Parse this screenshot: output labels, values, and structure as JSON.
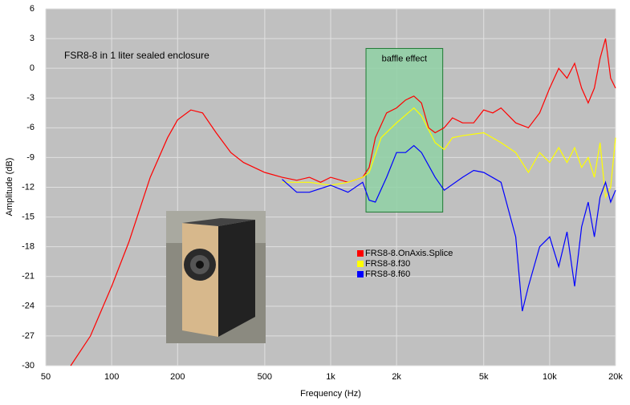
{
  "chart_data": {
    "type": "line",
    "title": "FSR8-8 in 1 liter sealed enclosure",
    "x_label": "Frequency (Hz)",
    "y_label": "Amplitude (dB)",
    "x_scale": "log",
    "grid": true,
    "legend": "center",
    "xlim": [
      50,
      20000
    ],
    "ylim": [
      -30,
      6
    ],
    "xticks": [
      50,
      100,
      200,
      500,
      {
        "value": 1000,
        "label": "1k"
      },
      {
        "value": 2000,
        "label": "2k"
      },
      {
        "value": 5000,
        "label": "5k"
      },
      {
        "value": 10000,
        "label": "10k"
      },
      {
        "value": 20000,
        "label": "20k"
      }
    ],
    "yticks": [
      6,
      3,
      0,
      -3,
      -6,
      -9,
      -12,
      -15,
      -18,
      -21,
      -24,
      -27,
      -30
    ],
    "shaded_region": {
      "label": "baffle effect",
      "xlim": [
        1450,
        3250
      ],
      "ylim": [
        -14.5,
        2
      ],
      "color": "#8fd1a4"
    },
    "series": [
      {
        "name": "FRS8-8.OnAxis.Splice",
        "color": "#ff0000",
        "x": [
          65,
          80,
          100,
          120,
          150,
          180,
          200,
          230,
          260,
          300,
          350,
          400,
          500,
          600,
          700,
          800,
          900,
          1000,
          1200,
          1400,
          1500,
          1600,
          1800,
          2000,
          2200,
          2400,
          2600,
          2800,
          3000,
          3300,
          3600,
          4000,
          4500,
          5000,
          5500,
          6000,
          7000,
          8000,
          9000,
          10000,
          11000,
          12000,
          13000,
          14000,
          15000,
          16000,
          17000,
          18000,
          19000,
          20000
        ],
        "values": [
          -30,
          -27,
          -22,
          -17.5,
          -11,
          -7,
          -5.2,
          -4.2,
          -4.5,
          -6.5,
          -8.5,
          -9.5,
          -10.5,
          -11,
          -11.3,
          -11,
          -11.5,
          -11,
          -11.5,
          -11,
          -10,
          -7,
          -4.5,
          -4,
          -3.2,
          -2.8,
          -3.5,
          -6,
          -6.5,
          -6,
          -5,
          -5.5,
          -5.5,
          -4.2,
          -4.5,
          -4,
          -5.5,
          -6,
          -4.5,
          -2,
          0,
          -1,
          0.5,
          -2,
          -3.5,
          -2,
          1,
          3,
          -1,
          -2
        ]
      },
      {
        "name": "FRS8-8.f30",
        "color": "#ffff00",
        "x": [
          600,
          800,
          1000,
          1200,
          1400,
          1500,
          1700,
          2000,
          2400,
          2600,
          3000,
          3300,
          3600,
          4000,
          5000,
          6000,
          7000,
          8000,
          9000,
          10000,
          11000,
          12000,
          13000,
          14000,
          15000,
          16000,
          17000,
          18000,
          19000,
          20000
        ],
        "values": [
          -11.5,
          -11.5,
          -11.8,
          -11.5,
          -11,
          -10.5,
          -7,
          -5.5,
          -4,
          -4.8,
          -7.5,
          -8.2,
          -7,
          -6.8,
          -6.5,
          -7.5,
          -8.5,
          -10.5,
          -8.5,
          -9.5,
          -8,
          -9.5,
          -8,
          -10,
          -9,
          -11,
          -7.5,
          -13,
          -12,
          -7
        ]
      },
      {
        "name": "FRS8-8.f60",
        "color": "#0000ff",
        "x": [
          600,
          700,
          800,
          1000,
          1200,
          1400,
          1500,
          1600,
          1800,
          2000,
          2200,
          2400,
          2600,
          3000,
          3300,
          4000,
          4500,
          5000,
          6000,
          7000,
          7500,
          8000,
          9000,
          10000,
          11000,
          12000,
          13000,
          14000,
          15000,
          16000,
          17000,
          18000,
          19000,
          20000
        ],
        "values": [
          -11.2,
          -12.5,
          -12.5,
          -11.8,
          -12.5,
          -11.5,
          -13.3,
          -13.5,
          -11,
          -8.5,
          -8.5,
          -7.8,
          -8.5,
          -11,
          -12.3,
          -11,
          -10.3,
          -10.5,
          -11.5,
          -17,
          -24.5,
          -22,
          -18,
          -17,
          -20,
          -16.5,
          -22,
          -16,
          -13.5,
          -17,
          -13,
          -11.5,
          -13.5,
          -12.3
        ]
      }
    ]
  }
}
